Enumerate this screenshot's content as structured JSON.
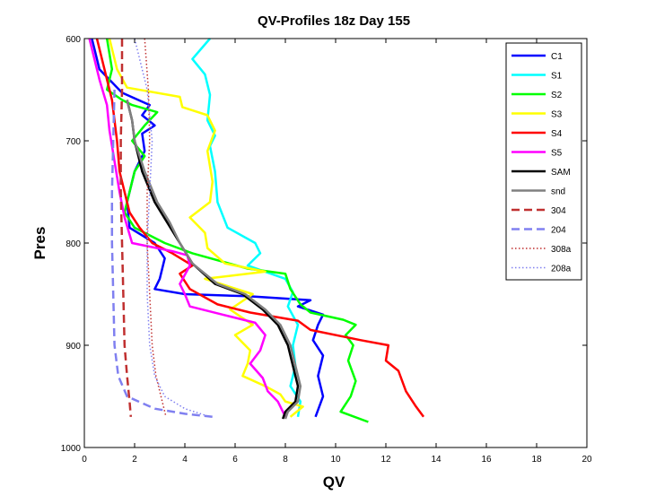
{
  "chart_data": {
    "type": "line",
    "title": "QV-Profiles 18z Day 155",
    "xlabel": "QV",
    "ylabel": "Pres",
    "xlim": [
      0,
      20
    ],
    "ylim": [
      1000,
      600
    ],
    "y_reversed": true,
    "xticks": [
      "0",
      "2",
      "4",
      "6",
      "8",
      "10",
      "12",
      "14",
      "16",
      "18",
      "20"
    ],
    "yticks": [
      "600",
      "700",
      "800",
      "900",
      "1000"
    ],
    "grid": false,
    "legend_position": "top-right",
    "series": [
      {
        "name": "C1",
        "color": "#0000ff",
        "style": "solid",
        "width": 2.5,
        "points": [
          [
            0.3,
            600
          ],
          [
            0.6,
            630
          ],
          [
            1.5,
            653
          ],
          [
            2.6,
            665
          ],
          [
            2.3,
            675
          ],
          [
            2.8,
            685
          ],
          [
            2.3,
            693
          ],
          [
            2.4,
            710
          ],
          [
            2.0,
            730
          ],
          [
            1.7,
            760
          ],
          [
            1.8,
            785
          ],
          [
            2.8,
            800
          ],
          [
            3.2,
            815
          ],
          [
            3.0,
            835
          ],
          [
            2.8,
            845
          ],
          [
            4.0,
            850
          ],
          [
            6.5,
            852
          ],
          [
            9.0,
            856
          ],
          [
            8.5,
            862
          ],
          [
            9.5,
            870
          ],
          [
            9.3,
            880
          ],
          [
            9.1,
            895
          ],
          [
            9.5,
            910
          ],
          [
            9.3,
            930
          ],
          [
            9.5,
            950
          ],
          [
            9.2,
            970
          ]
        ]
      },
      {
        "name": "S1",
        "color": "#00ffff",
        "style": "solid",
        "width": 2.5,
        "points": [
          [
            5.0,
            600
          ],
          [
            4.3,
            620
          ],
          [
            4.8,
            635
          ],
          [
            5.0,
            655
          ],
          [
            4.9,
            680
          ],
          [
            5.2,
            695
          ],
          [
            5.0,
            705
          ],
          [
            5.2,
            730
          ],
          [
            5.3,
            760
          ],
          [
            5.7,
            785
          ],
          [
            6.8,
            800
          ],
          [
            7.0,
            810
          ],
          [
            6.5,
            822
          ],
          [
            8.0,
            835
          ],
          [
            8.3,
            848
          ],
          [
            8.1,
            862
          ],
          [
            8.5,
            880
          ],
          [
            8.3,
            900
          ],
          [
            8.4,
            920
          ],
          [
            8.2,
            940
          ],
          [
            8.6,
            955
          ],
          [
            8.5,
            970
          ]
        ]
      },
      {
        "name": "S2",
        "color": "#00ff00",
        "style": "solid",
        "width": 2.5,
        "points": [
          [
            0.9,
            600
          ],
          [
            1.1,
            630
          ],
          [
            0.9,
            650
          ],
          [
            1.5,
            660
          ],
          [
            1.9,
            665
          ],
          [
            2.9,
            672
          ],
          [
            2.4,
            685
          ],
          [
            1.9,
            700
          ],
          [
            2.4,
            715
          ],
          [
            2.0,
            730
          ],
          [
            1.8,
            750
          ],
          [
            1.6,
            770
          ],
          [
            2.0,
            785
          ],
          [
            3.2,
            800
          ],
          [
            4.3,
            810
          ],
          [
            6.5,
            825
          ],
          [
            8.0,
            830
          ],
          [
            8.2,
            845
          ],
          [
            8.6,
            860
          ],
          [
            9.0,
            868
          ],
          [
            10.3,
            875
          ],
          [
            10.8,
            880
          ],
          [
            10.4,
            890
          ],
          [
            10.7,
            900
          ],
          [
            10.5,
            915
          ],
          [
            10.8,
            935
          ],
          [
            10.6,
            950
          ],
          [
            10.2,
            965
          ],
          [
            11.3,
            975
          ]
        ]
      },
      {
        "name": "S3",
        "color": "#ffff00",
        "style": "solid",
        "width": 2.5,
        "points": [
          [
            1.0,
            600
          ],
          [
            1.3,
            630
          ],
          [
            1.7,
            648
          ],
          [
            3.8,
            657
          ],
          [
            3.9,
            667
          ],
          [
            4.9,
            675
          ],
          [
            5.2,
            690
          ],
          [
            4.9,
            710
          ],
          [
            5.1,
            740
          ],
          [
            5.0,
            760
          ],
          [
            4.2,
            775
          ],
          [
            4.8,
            790
          ],
          [
            4.9,
            805
          ],
          [
            5.6,
            820
          ],
          [
            7.2,
            828
          ],
          [
            4.8,
            835
          ],
          [
            6.7,
            850
          ],
          [
            5.8,
            865
          ],
          [
            6.7,
            880
          ],
          [
            6.0,
            890
          ],
          [
            6.6,
            905
          ],
          [
            6.5,
            918
          ],
          [
            6.3,
            930
          ],
          [
            7.2,
            940
          ],
          [
            7.8,
            948
          ],
          [
            8.0,
            955
          ],
          [
            8.7,
            960
          ],
          [
            8.2,
            970
          ]
        ]
      },
      {
        "name": "S4",
        "color": "#ff0000",
        "style": "solid",
        "width": 2.5,
        "points": [
          [
            0.5,
            600
          ],
          [
            0.8,
            630
          ],
          [
            1.1,
            660
          ],
          [
            1.3,
            700
          ],
          [
            1.4,
            730
          ],
          [
            1.8,
            770
          ],
          [
            2.2,
            785
          ],
          [
            2.7,
            800
          ],
          [
            3.5,
            810
          ],
          [
            4.3,
            822
          ],
          [
            3.8,
            830
          ],
          [
            4.2,
            845
          ],
          [
            5.3,
            860
          ],
          [
            6.6,
            868
          ],
          [
            8.5,
            876
          ],
          [
            9.0,
            885
          ],
          [
            11.0,
            895
          ],
          [
            12.1,
            900
          ],
          [
            12.0,
            915
          ],
          [
            12.5,
            925
          ],
          [
            12.8,
            945
          ],
          [
            13.2,
            960
          ],
          [
            13.5,
            970
          ]
        ]
      },
      {
        "name": "S5",
        "color": "#ff00ff",
        "style": "solid",
        "width": 2.5,
        "points": [
          [
            0.2,
            600
          ],
          [
            0.6,
            640
          ],
          [
            0.9,
            665
          ],
          [
            1.0,
            690
          ],
          [
            1.2,
            720
          ],
          [
            1.4,
            750
          ],
          [
            1.6,
            775
          ],
          [
            1.9,
            800
          ],
          [
            3.5,
            808
          ],
          [
            4.1,
            812
          ],
          [
            4.2,
            822
          ],
          [
            3.8,
            840
          ],
          [
            4.0,
            850
          ],
          [
            4.2,
            862
          ],
          [
            5.5,
            870
          ],
          [
            6.8,
            878
          ],
          [
            7.2,
            890
          ],
          [
            7.0,
            905
          ],
          [
            6.6,
            918
          ],
          [
            7.1,
            932
          ],
          [
            7.3,
            945
          ],
          [
            7.7,
            955
          ],
          [
            7.9,
            965
          ],
          [
            8.0,
            970
          ]
        ]
      },
      {
        "name": "SAM",
        "color": "#000000",
        "style": "solid",
        "width": 2.5,
        "points": [
          [
            1.7,
            660
          ],
          [
            1.9,
            680
          ],
          [
            2.0,
            700
          ],
          [
            2.3,
            730
          ],
          [
            2.8,
            760
          ],
          [
            3.3,
            780
          ],
          [
            3.8,
            800
          ],
          [
            4.3,
            820
          ],
          [
            5.2,
            840
          ],
          [
            6.3,
            850
          ],
          [
            7.1,
            865
          ],
          [
            7.7,
            880
          ],
          [
            8.1,
            900
          ],
          [
            8.3,
            920
          ],
          [
            8.5,
            940
          ],
          [
            8.4,
            955
          ],
          [
            8.0,
            965
          ],
          [
            7.9,
            972
          ]
        ]
      },
      {
        "name": "snd",
        "color": "#808080",
        "style": "solid",
        "width": 2.5,
        "points": [
          [
            1.7,
            660
          ],
          [
            1.9,
            680
          ],
          [
            2.0,
            700
          ],
          [
            2.4,
            730
          ],
          [
            2.9,
            760
          ],
          [
            3.4,
            780
          ],
          [
            3.8,
            800
          ],
          [
            4.3,
            820
          ],
          [
            5.3,
            840
          ],
          [
            6.4,
            850
          ],
          [
            7.2,
            865
          ],
          [
            7.8,
            880
          ],
          [
            8.2,
            900
          ],
          [
            8.4,
            920
          ],
          [
            8.6,
            940
          ],
          [
            8.5,
            955
          ],
          [
            8.1,
            965
          ],
          [
            8.0,
            972
          ]
        ]
      },
      {
        "name": "304",
        "color": "#c03030",
        "style": "dashed",
        "width": 2.5,
        "points": [
          [
            1.5,
            600
          ],
          [
            1.5,
            650
          ],
          [
            1.45,
            700
          ],
          [
            1.45,
            750
          ],
          [
            1.5,
            800
          ],
          [
            1.55,
            850
          ],
          [
            1.6,
            900
          ],
          [
            1.7,
            930
          ],
          [
            1.8,
            955
          ],
          [
            1.85,
            970
          ]
        ]
      },
      {
        "name": "204",
        "color": "#8080f0",
        "style": "dashed",
        "width": 2.5,
        "points": [
          [
            1.2,
            650
          ],
          [
            1.15,
            700
          ],
          [
            1.1,
            750
          ],
          [
            1.1,
            800
          ],
          [
            1.15,
            850
          ],
          [
            1.2,
            900
          ],
          [
            1.35,
            930
          ],
          [
            1.7,
            950
          ],
          [
            2.8,
            962
          ],
          [
            4.0,
            967
          ],
          [
            5.1,
            970
          ]
        ]
      },
      {
        "name": "308a",
        "color": "#c03030",
        "style": "dotted",
        "width": 1.5,
        "points": [
          [
            2.4,
            600
          ],
          [
            2.55,
            650
          ],
          [
            2.6,
            700
          ],
          [
            2.5,
            750
          ],
          [
            2.5,
            800
          ],
          [
            2.6,
            850
          ],
          [
            2.7,
            900
          ],
          [
            2.85,
            930
          ],
          [
            3.1,
            955
          ],
          [
            3.25,
            970
          ]
        ]
      },
      {
        "name": "208a",
        "color": "#8080f0",
        "style": "dotted",
        "width": 1.5,
        "points": [
          [
            2.0,
            600
          ],
          [
            2.3,
            630
          ],
          [
            2.5,
            650
          ],
          [
            2.7,
            700
          ],
          [
            2.6,
            750
          ],
          [
            2.5,
            800
          ],
          [
            2.5,
            850
          ],
          [
            2.6,
            900
          ],
          [
            2.8,
            930
          ],
          [
            3.2,
            950
          ],
          [
            4.0,
            962
          ],
          [
            5.0,
            970
          ]
        ]
      }
    ]
  }
}
